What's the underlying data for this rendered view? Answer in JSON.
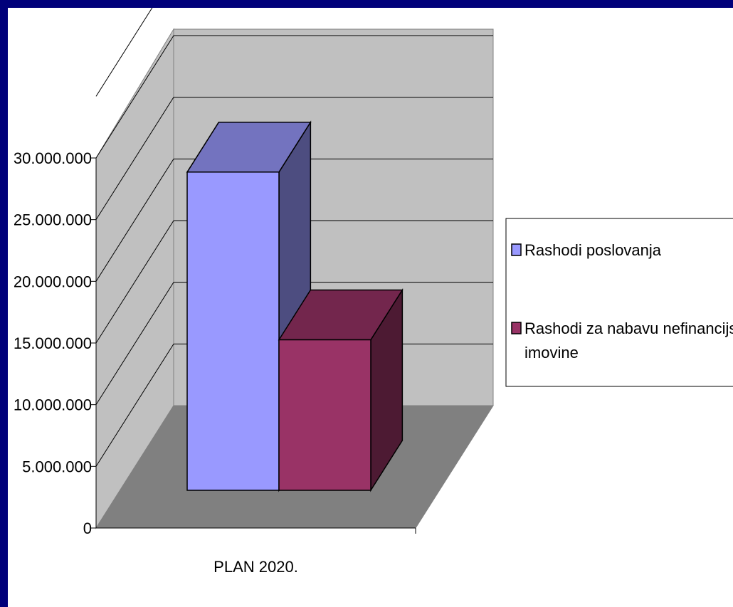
{
  "chart_data": {
    "type": "bar",
    "title": "",
    "xlabel": "",
    "ylabel": "",
    "categories": [
      "PLAN 2020."
    ],
    "ylim": [
      0,
      30000000
    ],
    "yticks": [
      "0",
      "5.000.000",
      "10.000.000",
      "15.000.000",
      "20.000.000",
      "25.000.000",
      "30.000.000"
    ],
    "grid": true,
    "legend_position": "right",
    "series": [
      {
        "name": "Rashodi poslovanja",
        "values": [
          25800000
        ],
        "color": "#9999ff"
      },
      {
        "name": "Rashodi za nabavu nefinancijske imovine",
        "values": [
          12200000
        ],
        "color": "#993366"
      }
    ]
  },
  "legend": {
    "items": [
      {
        "lines": [
          "Rashodi poslovanja"
        ]
      },
      {
        "lines": [
          "Rashodi za nabavu nefinancijske",
          "imovine"
        ]
      }
    ]
  }
}
